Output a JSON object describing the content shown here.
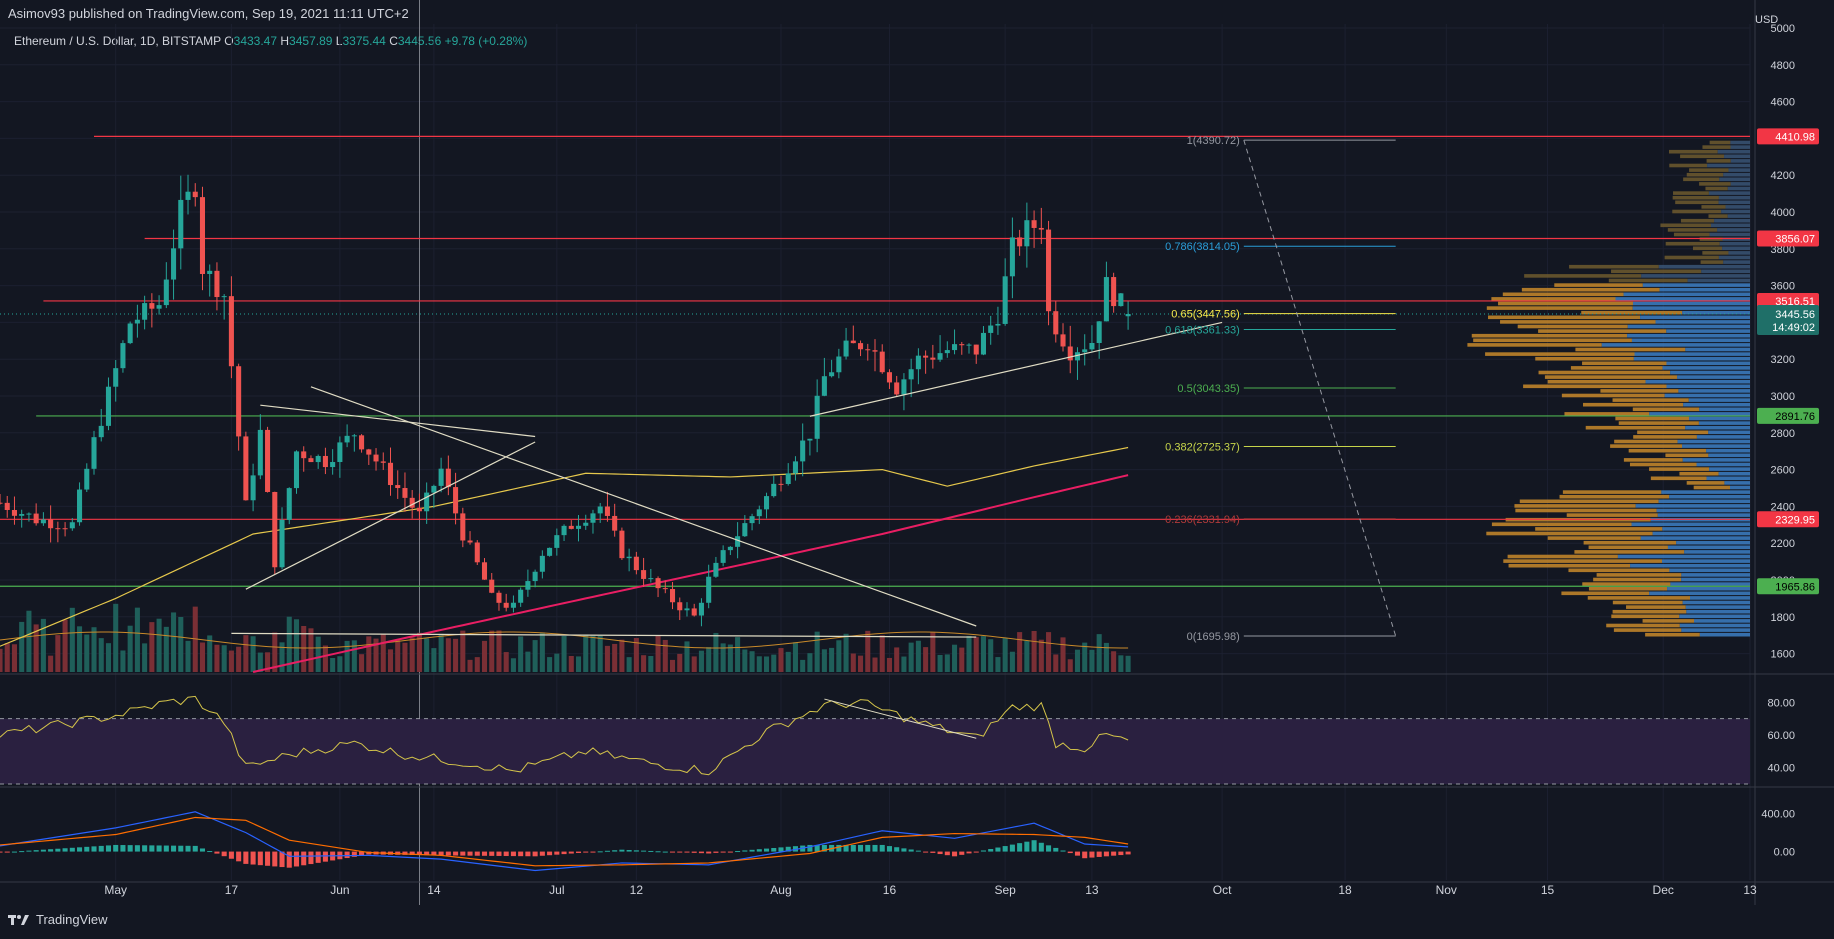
{
  "header": {
    "publisher": "Asimov93 published on TradingView.com, Sep 19, 2021 11:11 UTC+2",
    "symbol": "Ethereum / U.S. Dollar, 1D, BITSTAMP",
    "o_label": "O",
    "o_value": "3433.47",
    "h_label": "H",
    "h_value": "3457.89",
    "l_label": "L",
    "l_value": "3375.44",
    "c_label": "C",
    "c_value": "3445.56 +9.78 (+0.28%)"
  },
  "footer": {
    "brand": "TradingView"
  },
  "colors": {
    "background": "#131722",
    "up": "#26a69a",
    "down": "#ef5350",
    "resistance": "#f23645",
    "support": "#4caf50",
    "fib_blue": "#2962ff",
    "ma_yellow": "#e6c84c",
    "ma_pink": "#e91e63",
    "rsi": "#d4c44a",
    "rsi_band": "#2a2040",
    "macd_line": "#2962ff",
    "signal_line": "#ff6d00",
    "vp_orange": "#c98a2a",
    "vp_blue": "#3d7fc4"
  },
  "chart_data": [
    {
      "type": "candlestick",
      "panel": "price",
      "currency_label": "USD",
      "ylim": [
        1500,
        5000
      ],
      "y_ticks": [
        1600,
        1800,
        2000,
        2200,
        2400,
        2600,
        2800,
        3000,
        3200,
        3400,
        3600,
        3800,
        4000,
        4200,
        4400,
        4600,
        4800,
        5000
      ],
      "x_tick_labels": [
        "May",
        "17",
        "Jun",
        "14",
        "Jul",
        "12",
        "Aug",
        "16",
        "Sep",
        "13",
        "Oct",
        "18",
        "Nov",
        "15",
        "Dec",
        "13"
      ],
      "x_tick_dates": [
        "2021-05-01",
        "2021-05-17",
        "2021-06-01",
        "2021-06-14",
        "2021-07-01",
        "2021-07-12",
        "2021-08-01",
        "2021-08-16",
        "2021-09-01",
        "2021-09-13",
        "2021-10-01",
        "2021-10-18",
        "2021-11-01",
        "2021-11-15",
        "2021-12-01",
        "2021-12-13"
      ],
      "date_range": [
        "2021-04-15",
        "2021-12-13"
      ],
      "close_anchors": [
        [
          "2021-04-15",
          2420
        ],
        [
          "2021-04-20",
          2330
        ],
        [
          "2021-04-25",
          2300
        ],
        [
          "2021-04-28",
          2750
        ],
        [
          "2021-05-03",
          3400
        ],
        [
          "2021-05-07",
          3500
        ],
        [
          "2021-05-10",
          4000
        ],
        [
          "2021-05-12",
          4150
        ],
        [
          "2021-05-13",
          3700
        ],
        [
          "2021-05-16",
          3550
        ],
        [
          "2021-05-19",
          2400
        ],
        [
          "2021-05-21",
          2800
        ],
        [
          "2021-05-23",
          2100
        ],
        [
          "2021-05-26",
          2700
        ],
        [
          "2021-05-30",
          2650
        ],
        [
          "2021-06-03",
          2800
        ],
        [
          "2021-06-08",
          2550
        ],
        [
          "2021-06-12",
          2350
        ],
        [
          "2021-06-15",
          2600
        ],
        [
          "2021-06-18",
          2250
        ],
        [
          "2021-06-21",
          2000
        ],
        [
          "2021-06-22",
          1900
        ],
        [
          "2021-06-25",
          1850
        ],
        [
          "2021-06-29",
          2150
        ],
        [
          "2021-07-03",
          2300
        ],
        [
          "2021-07-07",
          2400
        ],
        [
          "2021-07-10",
          2150
        ],
        [
          "2021-07-15",
          1950
        ],
        [
          "2021-07-20",
          1800
        ],
        [
          "2021-07-22",
          2000
        ],
        [
          "2021-07-25",
          2200
        ],
        [
          "2021-07-30",
          2450
        ],
        [
          "2021-08-05",
          2800
        ],
        [
          "2021-08-07",
          3100
        ],
        [
          "2021-08-10",
          3250
        ],
        [
          "2021-08-13",
          3300
        ],
        [
          "2021-08-17",
          3050
        ],
        [
          "2021-08-20",
          3200
        ],
        [
          "2021-08-24",
          3250
        ],
        [
          "2021-08-28",
          3250
        ],
        [
          "2021-08-31",
          3450
        ],
        [
          "2021-09-02",
          3800
        ],
        [
          "2021-09-04",
          3900
        ],
        [
          "2021-09-06",
          3950
        ],
        [
          "2021-09-07",
          3450
        ],
        [
          "2021-09-10",
          3250
        ],
        [
          "2021-09-13",
          3300
        ],
        [
          "2021-09-15",
          3600
        ],
        [
          "2021-09-18",
          3445.56
        ]
      ],
      "last_candle": {
        "open": 3433.47,
        "high": 3457.89,
        "low": 3375.44,
        "close": 3445.56
      },
      "horizontal_levels": [
        {
          "value": 4410.98,
          "label": "4410.98",
          "kind": "resistance"
        },
        {
          "value": 3856.07,
          "label": "3856.07",
          "kind": "resistance"
        },
        {
          "value": 3516.51,
          "label": "3516.51",
          "kind": "resistance"
        },
        {
          "value": 2891.76,
          "label": "2891.76",
          "kind": "support"
        },
        {
          "value": 2329.95,
          "label": "2329.95",
          "kind": "resistance"
        },
        {
          "value": 1965.86,
          "label": "1965.86",
          "kind": "support"
        }
      ],
      "price_label": {
        "value": 3445.56,
        "text": "3445.56",
        "countdown": "14:49:02"
      },
      "fibonacci": [
        {
          "ratio": "1",
          "value": 4390.72,
          "text": "1(4390.72)"
        },
        {
          "ratio": "0.786",
          "value": 3814.05,
          "text": "0.786(3814.05)"
        },
        {
          "ratio": "0.65",
          "value": 3447.56,
          "text": "0.65(3447.56)"
        },
        {
          "ratio": "0.618",
          "value": 3361.33,
          "text": "0.618(3361.33)"
        },
        {
          "ratio": "0.5",
          "value": 3043.35,
          "text": "0.5(3043.35)"
        },
        {
          "ratio": "0.382",
          "value": 2725.37,
          "text": "0.382(2725.37)"
        },
        {
          "ratio": "0.236",
          "value": 2331.94,
          "text": "0.236(2331.94)"
        },
        {
          "ratio": "0",
          "value": 1695.98,
          "text": "0(1695.98)"
        }
      ],
      "trendlines": [
        {
          "from": [
            "2021-05-21",
            2950
          ],
          "to": [
            "2021-06-28",
            2780
          ]
        },
        {
          "from": [
            "2021-05-28",
            3050
          ],
          "to": [
            "2021-08-28",
            1750
          ]
        },
        {
          "from": [
            "2021-05-19",
            1950
          ],
          "to": [
            "2021-06-28",
            2750
          ]
        },
        {
          "from": [
            "2021-08-05",
            2890
          ],
          "to": [
            "2021-10-01",
            3400
          ]
        },
        {
          "from": [
            "2021-05-17",
            1710
          ],
          "to": [
            "2021-08-28",
            1690
          ]
        }
      ],
      "moving_averages": [
        {
          "color": "#e6c84c",
          "points": [
            [
              "2021-04-15",
              1640
            ],
            [
              "2021-05-01",
              1900
            ],
            [
              "2021-05-20",
              2250
            ],
            [
              "2021-06-14",
              2400
            ],
            [
              "2021-07-05",
              2580
            ],
            [
              "2021-07-25",
              2560
            ],
            [
              "2021-08-15",
              2600
            ],
            [
              "2021-08-24",
              2510
            ],
            [
              "2021-09-05",
              2620
            ],
            [
              "2021-09-18",
              2720
            ]
          ]
        },
        {
          "color": "#e91e63",
          "points": [
            [
              "2021-05-20",
              1500
            ],
            [
              "2021-06-14",
              1720
            ],
            [
              "2021-07-05",
              1900
            ],
            [
              "2021-07-25",
              2070
            ],
            [
              "2021-08-15",
              2250
            ],
            [
              "2021-09-05",
              2450
            ],
            [
              "2021-09-18",
              2570
            ]
          ]
        }
      ]
    },
    {
      "type": "bar",
      "panel": "volume",
      "note_series": "volume"
    },
    {
      "type": "line",
      "panel": "rsi",
      "ylim": [
        30,
        90
      ],
      "y_ticks": [
        40,
        60,
        80
      ],
      "bands": [
        30,
        70
      ],
      "anchors": [
        [
          "2021-04-15",
          60
        ],
        [
          "2021-05-01",
          72
        ],
        [
          "2021-05-08",
          80
        ],
        [
          "2021-05-12",
          82
        ],
        [
          "2021-05-16",
          68
        ],
        [
          "2021-05-19",
          40
        ],
        [
          "2021-05-25",
          48
        ],
        [
          "2021-06-03",
          55
        ],
        [
          "2021-06-10",
          48
        ],
        [
          "2021-06-20",
          42
        ],
        [
          "2021-06-25",
          38
        ],
        [
          "2021-07-05",
          50
        ],
        [
          "2021-07-15",
          42
        ],
        [
          "2021-07-22",
          38
        ],
        [
          "2021-07-30",
          62
        ],
        [
          "2021-08-07",
          78
        ],
        [
          "2021-08-12",
          80
        ],
        [
          "2021-08-20",
          68
        ],
        [
          "2021-08-28",
          58
        ],
        [
          "2021-09-02",
          77
        ],
        [
          "2021-09-06",
          78
        ],
        [
          "2021-09-08",
          55
        ],
        [
          "2021-09-12",
          52
        ],
        [
          "2021-09-15",
          60
        ],
        [
          "2021-09-18",
          56
        ]
      ]
    },
    {
      "type": "bar",
      "panel": "macd",
      "ylim": [
        -300,
        650
      ],
      "y_ticks": [
        0.0,
        400.0
      ],
      "y_tick_text": [
        "0.00",
        "400.00"
      ],
      "macd_anchors": [
        [
          "2021-04-15",
          60
        ],
        [
          "2021-05-01",
          250
        ],
        [
          "2021-05-12",
          420
        ],
        [
          "2021-05-19",
          200
        ],
        [
          "2021-05-25",
          -50
        ],
        [
          "2021-06-05",
          -40
        ],
        [
          "2021-06-15",
          -80
        ],
        [
          "2021-06-28",
          -200
        ],
        [
          "2021-07-10",
          -120
        ],
        [
          "2021-07-22",
          -140
        ],
        [
          "2021-08-05",
          50
        ],
        [
          "2021-08-15",
          220
        ],
        [
          "2021-08-25",
          140
        ],
        [
          "2021-09-05",
          300
        ],
        [
          "2021-09-12",
          80
        ],
        [
          "2021-09-18",
          50
        ]
      ],
      "signal_anchors": [
        [
          "2021-04-15",
          70
        ],
        [
          "2021-05-01",
          180
        ],
        [
          "2021-05-12",
          360
        ],
        [
          "2021-05-19",
          330
        ],
        [
          "2021-05-25",
          120
        ],
        [
          "2021-06-05",
          -10
        ],
        [
          "2021-06-15",
          -40
        ],
        [
          "2021-06-28",
          -150
        ],
        [
          "2021-07-10",
          -140
        ],
        [
          "2021-07-22",
          -120
        ],
        [
          "2021-08-05",
          -20
        ],
        [
          "2021-08-15",
          150
        ],
        [
          "2021-08-25",
          190
        ],
        [
          "2021-09-05",
          180
        ],
        [
          "2021-09-12",
          150
        ],
        [
          "2021-09-18",
          80
        ]
      ]
    }
  ]
}
